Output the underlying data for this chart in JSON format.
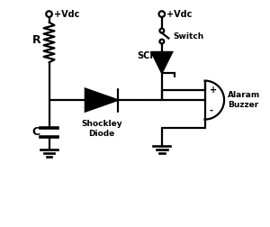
{
  "background_color": "#ffffff",
  "line_color": "#000000",
  "line_width": 1.6,
  "labels": {
    "vdc1": "+Vdc",
    "vdc2": "+Vdc",
    "R": "R",
    "C": "C",
    "switch": "Switch",
    "scr": "SCR",
    "shockley": "Shockley\nDiode",
    "buzzer": "Alaram\nBuzzer",
    "plus": "+",
    "minus": "-"
  },
  "figsize": [
    3.0,
    2.52
  ],
  "dpi": 100
}
